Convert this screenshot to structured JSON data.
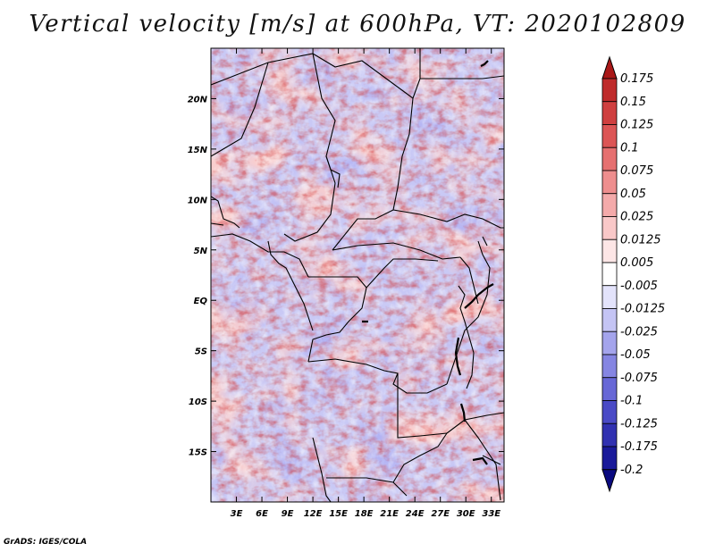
{
  "title": "Vertical velocity [m/s] at 600hPa, VT: 2020102809",
  "credit": "GrADS: IGES/COLA",
  "map": {
    "variable": "Vertical velocity",
    "units": "m/s",
    "level": "600hPa",
    "valid_time": "2020102809",
    "lon_labels": [
      "3E",
      "6E",
      "9E",
      "12E",
      "15E",
      "18E",
      "21E",
      "24E",
      "27E",
      "30E",
      "33E"
    ],
    "lat_labels": [
      "20N",
      "15N",
      "10N",
      "5N",
      "EQ",
      "5S",
      "10S",
      "15S"
    ],
    "lon_ticks": [
      3,
      6,
      9,
      12,
      15,
      18,
      21,
      24,
      27,
      30,
      33
    ],
    "lat_ticks": [
      20,
      15,
      10,
      5,
      0,
      -5,
      -10,
      -15
    ],
    "lon_range": [
      0.0,
      34.5
    ],
    "lat_range": [
      -20.0,
      25.0
    ]
  },
  "colorbar": {
    "levels": [
      "0.175",
      "0.15",
      "0.125",
      "0.1",
      "0.075",
      "0.05",
      "0.025",
      "0.0125",
      "0.005",
      "-0.005",
      "-0.0125",
      "-0.025",
      "-0.05",
      "-0.075",
      "-0.1",
      "-0.125",
      "-0.175",
      "-0.2"
    ],
    "colors": [
      "#aa1818",
      "#bf2b2b",
      "#cf3f3f",
      "#dc5555",
      "#e67070",
      "#ee8e8e",
      "#f4aaaa",
      "#f9c8c8",
      "#fde6e6",
      "#ffffff",
      "#e3e3fb",
      "#c4c4f4",
      "#a4a4ec",
      "#8585e2",
      "#6767d6",
      "#4a4ac6",
      "#3131b1",
      "#1a1a9a",
      "#0a0a80"
    ]
  }
}
